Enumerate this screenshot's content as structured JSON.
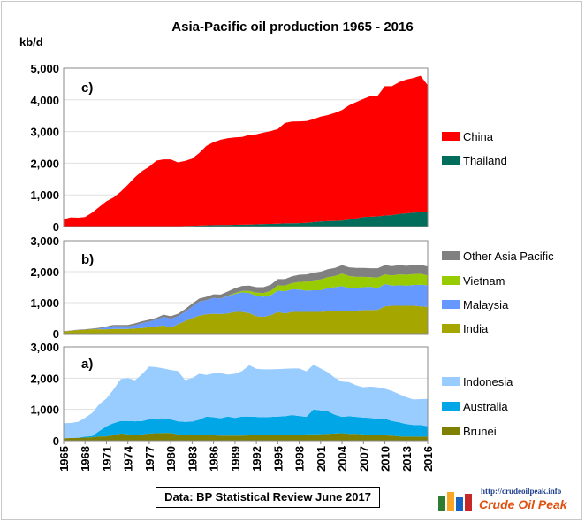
{
  "title": "Asia-Pacific oil production 1965 - 2016",
  "source": "Data: BP Statistical Review  June 2017",
  "logo": {
    "url": "http://crudeoilpeak.info",
    "name": "Crude Oil Peak"
  },
  "colors": {
    "China": "#ff0000",
    "Thailand": "#006e5a",
    "Other Asia Pacific": "#808080",
    "Vietnam": "#99cc00",
    "Malaysia": "#6699ff",
    "India": "#a6a600",
    "Indonesia": "#99ccff",
    "Australia": "#00a6e6",
    "Brunei": "#7f7f00"
  },
  "chart_data": [
    {
      "type": "area",
      "panel_label": "c)",
      "ylabel": "kb/d",
      "ylim": [
        0,
        5000
      ],
      "yticks": [
        "0",
        "1,000",
        "2,000",
        "3,000",
        "4,000",
        "5,000"
      ],
      "x": [
        1965,
        1966,
        1967,
        1968,
        1969,
        1970,
        1971,
        1972,
        1973,
        1974,
        1975,
        1976,
        1977,
        1978,
        1979,
        1980,
        1981,
        1982,
        1983,
        1984,
        1985,
        1986,
        1987,
        1988,
        1989,
        1990,
        1991,
        1992,
        1993,
        1994,
        1995,
        1996,
        1997,
        1998,
        1999,
        2000,
        2001,
        2002,
        2003,
        2004,
        2005,
        2006,
        2007,
        2008,
        2009,
        2010,
        2011,
        2012,
        2013,
        2014,
        2015,
        2016
      ],
      "series": [
        {
          "name": "Thailand",
          "values": [
            0,
            0,
            0,
            0,
            0,
            0,
            0,
            0,
            0,
            0,
            0,
            0,
            0,
            0,
            0,
            0,
            4,
            20,
            25,
            30,
            40,
            45,
            50,
            50,
            55,
            60,
            65,
            70,
            80,
            85,
            90,
            100,
            105,
            110,
            120,
            140,
            160,
            170,
            180,
            190,
            220,
            260,
            300,
            310,
            320,
            350,
            360,
            400,
            420,
            440,
            450,
            460
          ]
        },
        {
          "name": "China",
          "values": [
            230,
            290,
            280,
            300,
            440,
            620,
            800,
            920,
            1100,
            1320,
            1560,
            1750,
            1890,
            2080,
            2120,
            2120,
            2020,
            2050,
            2120,
            2290,
            2510,
            2620,
            2690,
            2740,
            2760,
            2770,
            2830,
            2840,
            2890,
            2930,
            2990,
            3170,
            3210,
            3210,
            3210,
            3250,
            3310,
            3350,
            3410,
            3490,
            3610,
            3670,
            3730,
            3810,
            3810,
            4080,
            4070,
            4160,
            4220,
            4250,
            4310,
            4000
          ]
        }
      ],
      "legend": [
        "China",
        "Thailand"
      ]
    },
    {
      "type": "area",
      "panel_label": "b)",
      "ylim": [
        0,
        3000
      ],
      "yticks": [
        "0",
        "1,000",
        "2,000",
        "3,000"
      ],
      "x": [
        1965,
        1966,
        1967,
        1968,
        1969,
        1970,
        1971,
        1972,
        1973,
        1974,
        1975,
        1976,
        1977,
        1978,
        1979,
        1980,
        1981,
        1982,
        1983,
        1984,
        1985,
        1986,
        1987,
        1988,
        1989,
        1990,
        1991,
        1992,
        1993,
        1994,
        1995,
        1996,
        1997,
        1998,
        1999,
        2000,
        2001,
        2002,
        2003,
        2004,
        2005,
        2006,
        2007,
        2008,
        2009,
        2010,
        2011,
        2012,
        2013,
        2014,
        2015,
        2016
      ],
      "series": [
        {
          "name": "India",
          "values": [
            70,
            90,
            110,
            120,
            140,
            140,
            140,
            150,
            150,
            150,
            170,
            180,
            210,
            230,
            260,
            190,
            300,
            400,
            500,
            580,
            620,
            640,
            630,
            650,
            700,
            700,
            660,
            560,
            540,
            590,
            700,
            650,
            700,
            700,
            700,
            700,
            700,
            720,
            730,
            740,
            720,
            740,
            760,
            760,
            770,
            880,
            900,
            900,
            900,
            900,
            880,
            860
          ]
        },
        {
          "name": "Malaysia",
          "values": [
            0,
            0,
            0,
            0,
            0,
            20,
            60,
            90,
            90,
            80,
            100,
            160,
            180,
            220,
            280,
            290,
            260,
            300,
            370,
            450,
            460,
            510,
            500,
            560,
            580,
            630,
            650,
            660,
            650,
            650,
            690,
            720,
            730,
            720,
            690,
            700,
            700,
            750,
            770,
            790,
            750,
            730,
            740,
            750,
            700,
            720,
            650,
            660,
            650,
            670,
            700,
            700
          ]
        },
        {
          "name": "Vietnam",
          "values": [
            0,
            0,
            0,
            0,
            0,
            0,
            0,
            0,
            0,
            0,
            0,
            0,
            0,
            0,
            0,
            0,
            0,
            0,
            0,
            0,
            0,
            0,
            0,
            10,
            30,
            50,
            70,
            100,
            120,
            140,
            170,
            180,
            200,
            250,
            290,
            320,
            350,
            350,
            360,
            410,
            390,
            360,
            330,
            310,
            340,
            310,
            330,
            350,
            350,
            350,
            350,
            320
          ]
        },
        {
          "name": "Other Asia Pacific",
          "values": [
            10,
            10,
            15,
            20,
            20,
            30,
            30,
            40,
            40,
            50,
            60,
            60,
            60,
            60,
            70,
            80,
            80,
            90,
            100,
            100,
            110,
            120,
            130,
            140,
            160,
            160,
            170,
            180,
            190,
            200,
            200,
            210,
            220,
            230,
            230,
            240,
            250,
            260,
            260,
            270,
            280,
            290,
            290,
            290,
            300,
            300,
            300,
            300,
            290,
            290,
            290,
            290
          ]
        }
      ],
      "legend": [
        "Other Asia Pacific",
        "Vietnam",
        "Malaysia",
        "India"
      ]
    },
    {
      "type": "area",
      "panel_label": "a)",
      "ylim": [
        0,
        3000
      ],
      "yticks": [
        "0",
        "1,000",
        "2,000",
        "3,000"
      ],
      "xticks": [
        "1965",
        "1968",
        "1971",
        "1974",
        "1977",
        "1980",
        "1983",
        "1986",
        "1989",
        "1992",
        "1995",
        "1998",
        "2001",
        "2004",
        "2007",
        "2010",
        "2013",
        "2016"
      ],
      "x": [
        1965,
        1966,
        1967,
        1968,
        1969,
        1970,
        1971,
        1972,
        1973,
        1974,
        1975,
        1976,
        1977,
        1978,
        1979,
        1980,
        1981,
        1982,
        1983,
        1984,
        1985,
        1986,
        1987,
        1988,
        1989,
        1990,
        1991,
        1992,
        1993,
        1994,
        1995,
        1996,
        1997,
        1998,
        1999,
        2000,
        2001,
        2002,
        2003,
        2004,
        2005,
        2006,
        2007,
        2008,
        2009,
        2010,
        2011,
        2012,
        2013,
        2014,
        2015,
        2016
      ],
      "series": [
        {
          "name": "Brunei",
          "values": [
            80,
            85,
            90,
            100,
            110,
            140,
            140,
            180,
            230,
            200,
            190,
            200,
            230,
            240,
            250,
            250,
            200,
            180,
            180,
            180,
            180,
            170,
            160,
            160,
            160,
            160,
            170,
            170,
            170,
            180,
            180,
            180,
            190,
            190,
            200,
            200,
            210,
            220,
            230,
            240,
            220,
            220,
            200,
            180,
            170,
            170,
            160,
            140,
            130,
            130,
            130,
            130
          ]
        },
        {
          "name": "Australia",
          "values": [
            0,
            0,
            10,
            30,
            40,
            170,
            320,
            380,
            400,
            430,
            430,
            430,
            450,
            470,
            470,
            430,
            420,
            420,
            430,
            490,
            590,
            580,
            560,
            610,
            570,
            610,
            600,
            590,
            580,
            580,
            590,
            600,
            630,
            600,
            560,
            800,
            760,
            720,
            600,
            520,
            560,
            540,
            540,
            550,
            520,
            530,
            470,
            450,
            400,
            370,
            370,
            330
          ]
        },
        {
          "name": "Indonesia",
          "values": [
            480,
            480,
            500,
            600,
            740,
            860,
            890,
            1080,
            1340,
            1370,
            1310,
            1500,
            1690,
            1640,
            1590,
            1580,
            1610,
            1340,
            1390,
            1470,
            1330,
            1400,
            1440,
            1340,
            1410,
            1460,
            1640,
            1540,
            1530,
            1520,
            1520,
            1520,
            1490,
            1520,
            1460,
            1430,
            1340,
            1250,
            1180,
            1130,
            1090,
            1010,
            970,
            1000,
            1020,
            960,
            960,
            900,
            860,
            820,
            830,
            880
          ]
        }
      ],
      "legend": [
        "Indonesia",
        "Australia",
        "Brunei"
      ]
    }
  ]
}
